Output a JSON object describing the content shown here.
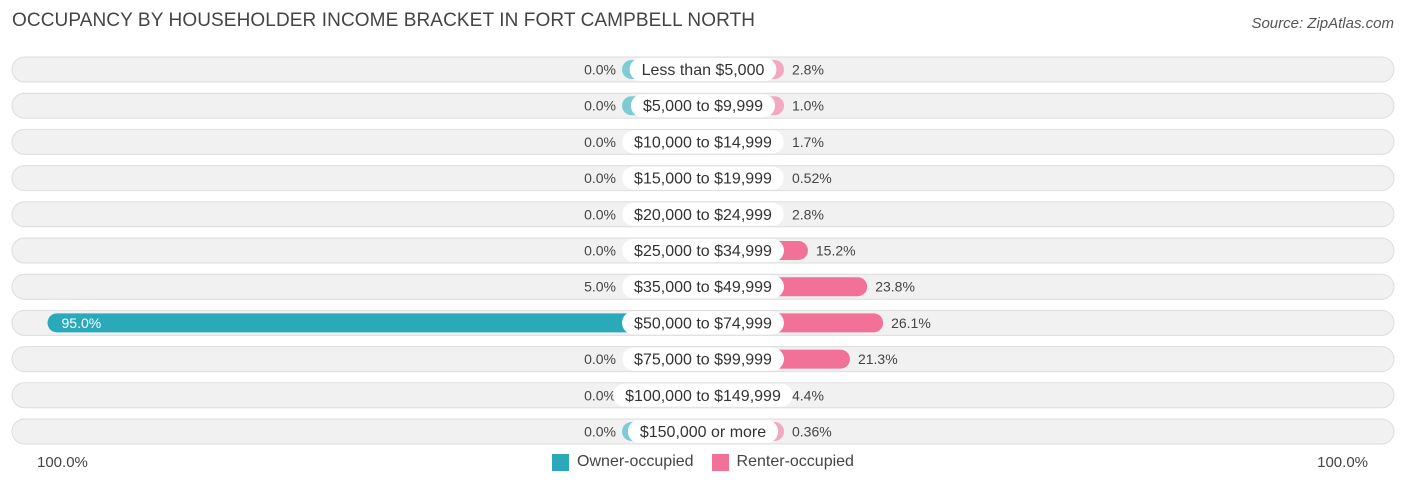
{
  "title": "OCCUPANCY BY HOUSEHOLDER INCOME BRACKET IN FORT CAMPBELL NORTH",
  "source": "Source: ZipAtlas.com",
  "colors": {
    "owner": "#7ecbd5",
    "owner_strong": "#2aa9bb",
    "renter": "#f4a7c0",
    "renter_strong": "#f17199",
    "row_bg": "#f1f1f1",
    "row_border": "#dddddd"
  },
  "chart_data": {
    "type": "bar",
    "title": "OCCUPANCY BY HOUSEHOLDER INCOME BRACKET IN FORT CAMPBELL NORTH",
    "categories": [
      "Less than $5,000",
      "$5,000 to $9,999",
      "$10,000 to $14,999",
      "$15,000 to $19,999",
      "$20,000 to $24,999",
      "$25,000 to $34,999",
      "$35,000 to $49,999",
      "$50,000 to $74,999",
      "$75,000 to $99,999",
      "$100,000 to $149,999",
      "$150,000 or more"
    ],
    "series": [
      {
        "name": "Owner-occupied",
        "values": [
          0.0,
          0.0,
          0.0,
          0.0,
          0.0,
          0.0,
          5.0,
          95.0,
          0.0,
          0.0,
          0.0
        ],
        "labels": [
          "0.0%",
          "0.0%",
          "0.0%",
          "0.0%",
          "0.0%",
          "0.0%",
          "5.0%",
          "95.0%",
          "0.0%",
          "0.0%",
          "0.0%"
        ]
      },
      {
        "name": "Renter-occupied",
        "values": [
          2.8,
          1.0,
          1.7,
          0.52,
          2.8,
          15.2,
          23.8,
          26.1,
          21.3,
          4.4,
          0.36
        ],
        "labels": [
          "2.8%",
          "1.0%",
          "1.7%",
          "0.52%",
          "2.8%",
          "15.2%",
          "23.8%",
          "26.1%",
          "21.3%",
          "4.4%",
          "0.36%"
        ]
      }
    ],
    "xlim": [
      -100,
      100
    ],
    "axis_left_label": "100.0%",
    "axis_right_label": "100.0%",
    "legend": [
      "Owner-occupied",
      "Renter-occupied"
    ],
    "legend_position": "bottom-center"
  }
}
